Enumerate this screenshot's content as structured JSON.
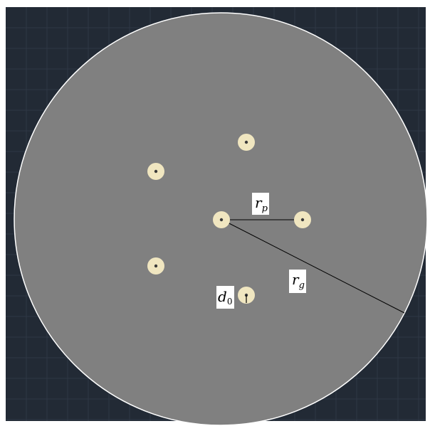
{
  "diagram": {
    "background_color": "#222a35",
    "grid_color": "#2f3845",
    "disk_color": "#808080",
    "disk_outline_color": "#ffffff",
    "hole_color": "#f0e6c0",
    "hole_center_color": "#3a3a3a",
    "line_color": "#000000",
    "label_bg_color": "#ffffff",
    "labels": {
      "rp": {
        "main": "r",
        "sub": "p"
      },
      "rg": {
        "main": "r",
        "sub": "g"
      },
      "d0": {
        "main": "d",
        "sub": "0"
      }
    }
  }
}
